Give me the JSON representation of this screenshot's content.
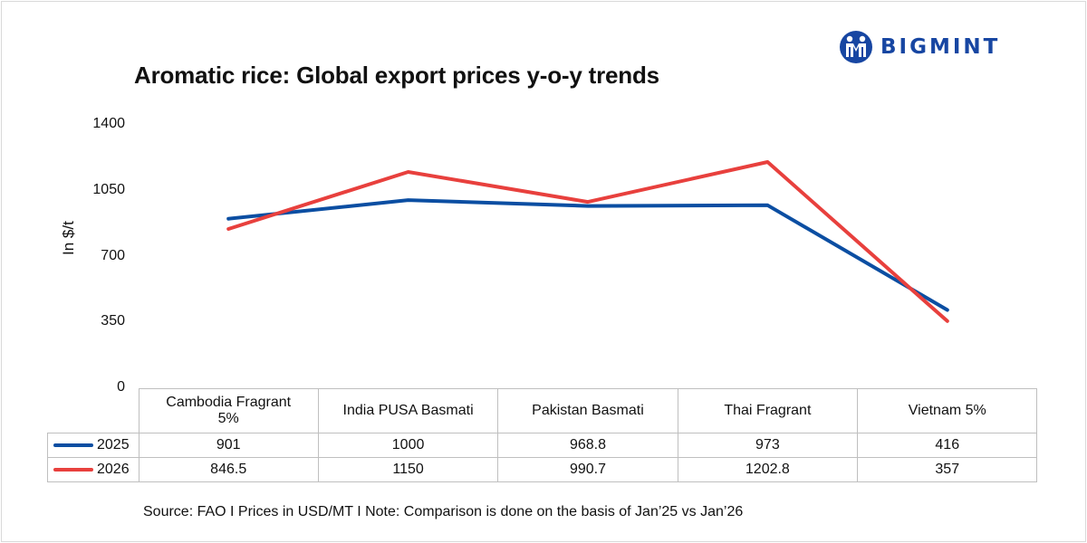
{
  "brand": {
    "name": "BIGMINT",
    "color": "#1746a2"
  },
  "chart_data": {
    "type": "line",
    "title": "Aromatic rice: Global export prices y-o-y trends",
    "ylabel": "In $/t",
    "xlabel": "",
    "ylim": [
      0,
      1400
    ],
    "yticks": [
      "0",
      "350",
      "700",
      "1050",
      "1400"
    ],
    "categories": [
      [
        "Cambodia Fragrant",
        "5%"
      ],
      [
        "India PUSA Basmati"
      ],
      [
        "Pakistan Basmati"
      ],
      [
        "Thai Fragrant"
      ],
      [
        "Vietnam 5%"
      ]
    ],
    "series": [
      {
        "name": "2025",
        "color": "#0b4ea2",
        "values": [
          901,
          1000,
          968.8,
          973,
          416
        ],
        "labels": [
          "901",
          "1000",
          "968.8",
          "973",
          "416"
        ]
      },
      {
        "name": "2026",
        "color": "#e8403d",
        "values": [
          846.5,
          1150,
          990.7,
          1202.8,
          357
        ],
        "labels": [
          "846.5",
          "1150",
          "990.7",
          "1202.8",
          "357"
        ]
      }
    ],
    "legend": "data-table"
  },
  "footer": {
    "source": "Source: FAO I Prices in USD/MT I Note: Comparison is done on the basis of Jan’25 vs Jan’26"
  }
}
